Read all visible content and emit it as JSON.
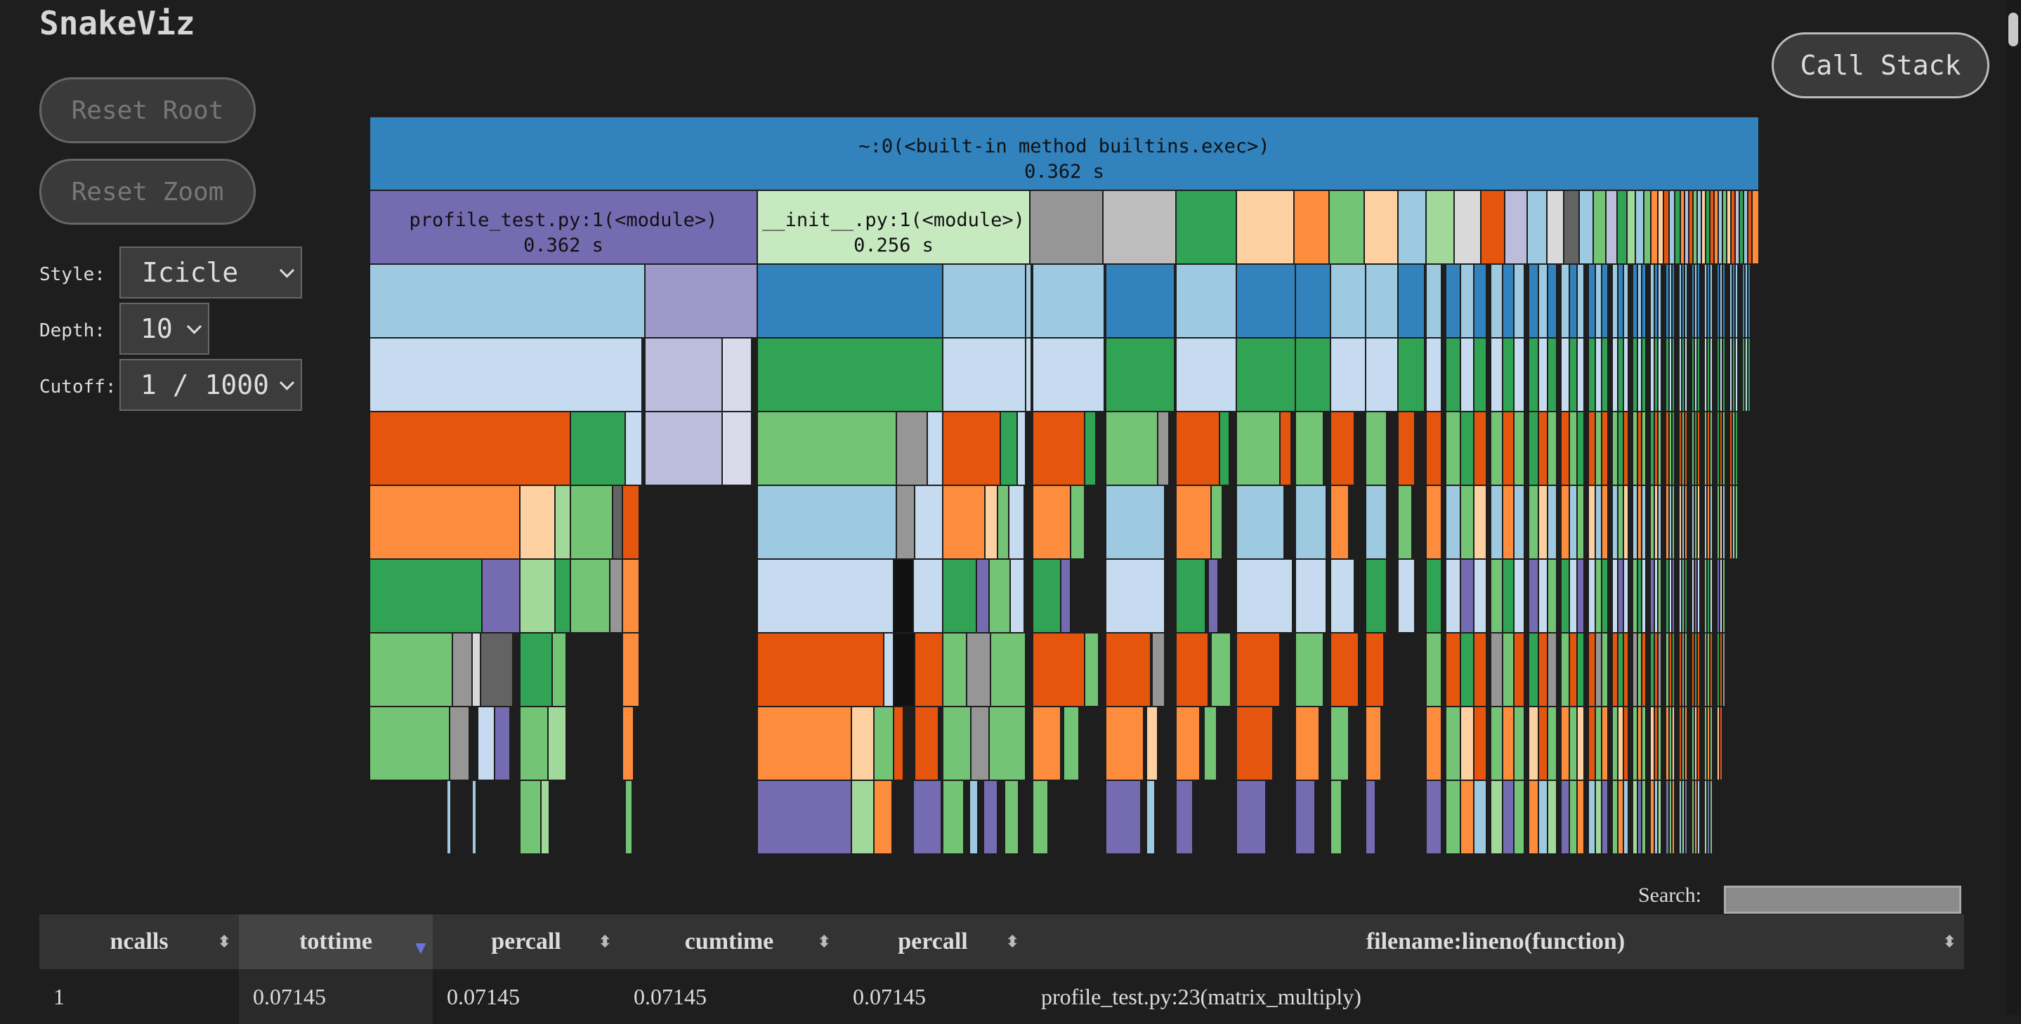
{
  "app_title": "SnakeViz",
  "buttons": {
    "reset_root": "Reset Root",
    "reset_zoom": "Reset Zoom",
    "call_stack": "Call Stack"
  },
  "controls": {
    "style_label": "Style:",
    "style_value": "Icicle",
    "depth_label": "Depth:",
    "depth_value": "10",
    "cutoff_label": "Cutoff:",
    "cutoff_value": "1 / 1000"
  },
  "icicle": {
    "root": {
      "name": "~:0(<built-in method builtins.exec>)",
      "time": "0.362 s"
    },
    "level1_named": [
      {
        "name": "profile_test.py:1(<module>)",
        "time": "0.362 s"
      },
      {
        "name": "__init__.py:1(<module>)",
        "time": "0.256 s"
      }
    ],
    "colors": {
      "blue": "#3182bd",
      "purple": "#756bb1",
      "lightgreen": "#c7e9c0",
      "lightblue": "#9ecae1",
      "paleblue": "#c6dbef",
      "orange": "#e6550d",
      "lightorange": "#fd8d3c",
      "peach": "#fdd0a2",
      "green": "#31a354",
      "midgreen": "#74c476",
      "lavender": "#bcbddc",
      "grey": "#969696"
    }
  },
  "search": {
    "label": "Search:"
  },
  "table": {
    "columns": [
      "ncalls",
      "tottime",
      "percall",
      "cumtime",
      "percall",
      "filename:lineno(function)"
    ],
    "sorted_column": "tottime",
    "rows": [
      {
        "ncalls": "1",
        "tottime": "0.07145",
        "percall": "0.07145",
        "cumtime": "0.07145",
        "percall2": "0.07145",
        "function": "profile_test.py:23(matrix_multiply)"
      }
    ]
  }
}
